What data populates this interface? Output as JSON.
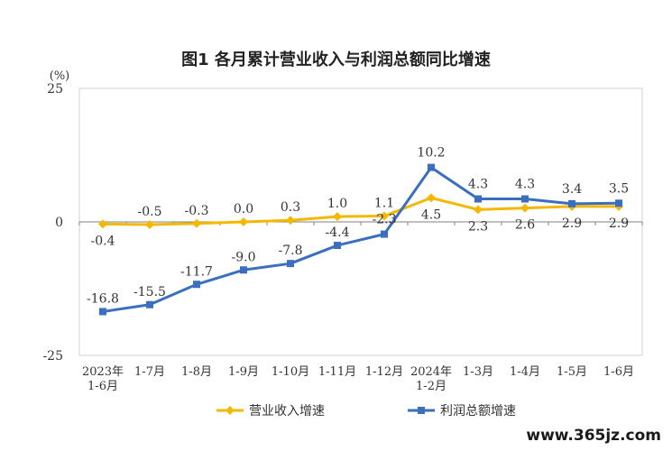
{
  "chart_data": {
    "type": "line",
    "title": "图1  各月累计营业收入与利润总额同比增速",
    "ylabel": "(%)",
    "ylim": [
      -25,
      25
    ],
    "yticks": [
      -25,
      0,
      25
    ],
    "categories": [
      "2023年\n1-6月",
      "1-7月",
      "1-8月",
      "1-9月",
      "1-10月",
      "1-11月",
      "1-12月",
      "2024年\n1-2月",
      "1-3月",
      "1-4月",
      "1-5月",
      "1-6月"
    ],
    "series": [
      {
        "name": "营业收入增速",
        "color": "#f5b800",
        "marker": "diamond",
        "values": [
          -0.4,
          -0.5,
          -0.3,
          0.0,
          0.3,
          1.0,
          1.1,
          4.5,
          2.3,
          2.6,
          2.9,
          2.9
        ],
        "labels": [
          "-0.4",
          "-0.5",
          "-0.3",
          "0.0",
          "0.3",
          "1.0",
          "1.1",
          "4.5",
          "2.3",
          "2.6",
          "2.9",
          "2.9"
        ]
      },
      {
        "name": "利润总额增速",
        "color": "#3a6fbf",
        "marker": "square",
        "values": [
          -16.8,
          -15.5,
          -11.7,
          -9.0,
          -7.8,
          -4.4,
          -2.3,
          10.2,
          4.3,
          4.3,
          3.4,
          3.5
        ],
        "labels": [
          "-16.8",
          "-15.5",
          "-11.7",
          "-9.0",
          "-7.8",
          "-4.4",
          "-2.3",
          "10.2",
          "4.3",
          "4.3",
          "3.4",
          "3.5"
        ]
      }
    ],
    "legend_position": "bottom",
    "grid": false
  },
  "watermark": "www.365jz.com"
}
